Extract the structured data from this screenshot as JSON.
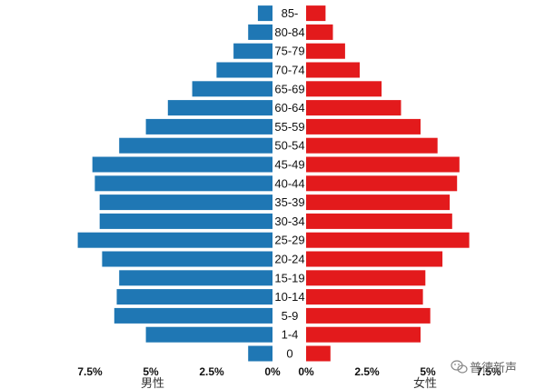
{
  "chart_data": {
    "type": "bar",
    "orientation": "horizontal-population-pyramid",
    "title": "",
    "categories": [
      "0",
      "1-4",
      "5-9",
      "10-14",
      "15-19",
      "20-24",
      "25-29",
      "30-34",
      "35-39",
      "40-44",
      "45-49",
      "50-54",
      "55-59",
      "60-64",
      "65-69",
      "70-74",
      "75-79",
      "80-84",
      "85-"
    ],
    "series": [
      {
        "name": "男性",
        "color": "#1f77b4",
        "values": [
          1.0,
          5.2,
          6.5,
          6.4,
          6.3,
          7.0,
          8.0,
          7.1,
          7.1,
          7.3,
          7.4,
          6.3,
          5.2,
          4.3,
          3.3,
          2.3,
          1.6,
          1.0,
          0.6
        ]
      },
      {
        "name": "女性",
        "color": "#e31a1c",
        "values": [
          1.0,
          4.7,
          5.1,
          4.8,
          4.9,
          5.6,
          6.7,
          6.0,
          5.9,
          6.2,
          6.3,
          5.4,
          4.7,
          3.9,
          3.1,
          2.2,
          1.6,
          1.1,
          0.8
        ]
      }
    ],
    "male_axis": {
      "ticks": [
        7.5,
        5,
        2.5,
        0
      ],
      "tick_labels": [
        "7.5%",
        "5%",
        "2.5%",
        "0%"
      ],
      "range": [
        0,
        8.0
      ]
    },
    "female_axis": {
      "ticks": [
        0,
        2.5,
        5,
        7.5
      ],
      "tick_labels": [
        "0%",
        "2.5%",
        "5%",
        "7.5%"
      ],
      "range": [
        0,
        8.0
      ]
    },
    "xlabel_left": "男性",
    "xlabel_right": "女性",
    "grid": false,
    "legend": "none"
  },
  "watermark": {
    "icon": "wechat-icon",
    "text": "普德新声"
  }
}
